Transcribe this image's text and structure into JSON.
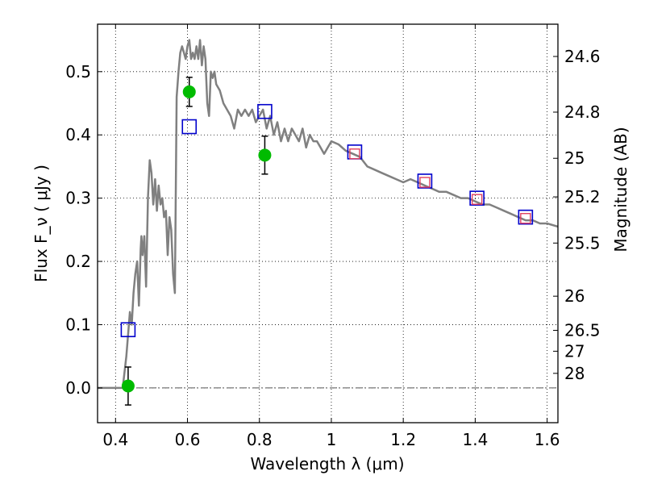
{
  "chart_data": {
    "type": "scatter",
    "xlabel": "Wavelength  λ (μm)",
    "ylabel": "Flux  F_ν  ( μJy )",
    "ylabel_right": "Magnitude (AB)",
    "xlim": [
      0.35,
      1.63
    ],
    "ylim": [
      -0.055,
      0.575
    ],
    "grid": true,
    "x_ticks": [
      {
        "value": 0.4,
        "label": "0.4"
      },
      {
        "value": 0.6,
        "label": "0.6"
      },
      {
        "value": 0.8,
        "label": "0.8"
      },
      {
        "value": 1.0,
        "label": "1"
      },
      {
        "value": 1.2,
        "label": "1.2"
      },
      {
        "value": 1.4,
        "label": "1.4"
      },
      {
        "value": 1.6,
        "label": "1.6"
      }
    ],
    "y_ticks": [
      {
        "value": 0.0,
        "label": "0.0"
      },
      {
        "value": 0.1,
        "label": "0.1"
      },
      {
        "value": 0.2,
        "label": "0.2"
      },
      {
        "value": 0.3,
        "label": "0.3"
      },
      {
        "value": 0.4,
        "label": "0.4"
      },
      {
        "value": 0.5,
        "label": "0.5"
      }
    ],
    "magnitude_ticks": [
      {
        "mag": 24.6,
        "flux": 0.524,
        "label": "24.6"
      },
      {
        "mag": 24.8,
        "flux": 0.436,
        "label": "24.8"
      },
      {
        "mag": 25.0,
        "flux": 0.363,
        "label": "25"
      },
      {
        "mag": 25.2,
        "flux": 0.302,
        "label": "25.2"
      },
      {
        "mag": 25.5,
        "flux": 0.229,
        "label": "25.5"
      },
      {
        "mag": 26.0,
        "flux": 0.145,
        "label": "26"
      },
      {
        "mag": 26.5,
        "flux": 0.091,
        "label": "26.5"
      },
      {
        "mag": 27.0,
        "flux": 0.058,
        "label": "27"
      },
      {
        "mag": 28.0,
        "flux": 0.023,
        "label": "28"
      }
    ],
    "series": [
      {
        "kind": "line",
        "color": "#808080",
        "x": [
          0.35,
          0.42,
          0.43,
          0.44,
          0.445,
          0.45,
          0.455,
          0.46,
          0.465,
          0.47,
          0.472,
          0.475,
          0.48,
          0.485,
          0.49,
          0.495,
          0.5,
          0.505,
          0.51,
          0.515,
          0.52,
          0.525,
          0.53,
          0.535,
          0.54,
          0.545,
          0.55,
          0.555,
          0.56,
          0.565,
          0.57,
          0.575,
          0.58,
          0.585,
          0.59,
          0.595,
          0.6,
          0.605,
          0.61,
          0.615,
          0.62,
          0.625,
          0.63,
          0.635,
          0.64,
          0.645,
          0.65,
          0.655,
          0.66,
          0.665,
          0.67,
          0.675,
          0.68,
          0.69,
          0.7,
          0.71,
          0.72,
          0.73,
          0.74,
          0.75,
          0.76,
          0.77,
          0.78,
          0.79,
          0.8,
          0.81,
          0.82,
          0.83,
          0.84,
          0.85,
          0.86,
          0.87,
          0.88,
          0.89,
          0.9,
          0.91,
          0.92,
          0.93,
          0.94,
          0.95,
          0.96,
          0.97,
          0.98,
          0.99,
          1.0,
          1.02,
          1.04,
          1.06,
          1.08,
          1.1,
          1.12,
          1.14,
          1.16,
          1.18,
          1.2,
          1.22,
          1.24,
          1.26,
          1.28,
          1.3,
          1.32,
          1.34,
          1.36,
          1.38,
          1.4,
          1.42,
          1.44,
          1.46,
          1.48,
          1.5,
          1.52,
          1.54,
          1.56,
          1.58,
          1.6,
          1.63
        ],
        "y": [
          0.0,
          0.0,
          0.05,
          0.12,
          0.1,
          0.15,
          0.18,
          0.2,
          0.13,
          0.22,
          0.24,
          0.21,
          0.24,
          0.16,
          0.3,
          0.36,
          0.34,
          0.29,
          0.33,
          0.28,
          0.32,
          0.29,
          0.3,
          0.27,
          0.28,
          0.21,
          0.27,
          0.25,
          0.18,
          0.15,
          0.46,
          0.5,
          0.53,
          0.54,
          0.53,
          0.52,
          0.54,
          0.55,
          0.52,
          0.53,
          0.52,
          0.54,
          0.52,
          0.55,
          0.51,
          0.54,
          0.52,
          0.45,
          0.43,
          0.5,
          0.49,
          0.5,
          0.48,
          0.47,
          0.45,
          0.44,
          0.43,
          0.41,
          0.44,
          0.43,
          0.44,
          0.43,
          0.44,
          0.42,
          0.43,
          0.44,
          0.41,
          0.43,
          0.4,
          0.42,
          0.39,
          0.41,
          0.39,
          0.41,
          0.4,
          0.39,
          0.41,
          0.38,
          0.4,
          0.39,
          0.39,
          0.38,
          0.37,
          0.38,
          0.39,
          0.385,
          0.375,
          0.37,
          0.365,
          0.35,
          0.345,
          0.34,
          0.335,
          0.33,
          0.325,
          0.33,
          0.325,
          0.32,
          0.315,
          0.31,
          0.31,
          0.305,
          0.3,
          0.3,
          0.295,
          0.29,
          0.29,
          0.285,
          0.28,
          0.275,
          0.27,
          0.265,
          0.265,
          0.26,
          0.26,
          0.255
        ]
      },
      {
        "kind": "points",
        "marker": "circle",
        "color": "#00bb00",
        "x": [
          0.435,
          0.605,
          0.815
        ],
        "y": [
          0.003,
          0.468,
          0.368
        ],
        "yerr": [
          0.03,
          0.023,
          0.03
        ]
      },
      {
        "kind": "points",
        "marker": "square-open",
        "color": "#0000cc",
        "x": [
          0.435,
          0.605,
          0.815,
          1.065,
          1.26,
          1.405,
          1.54
        ],
        "y": [
          0.092,
          0.413,
          0.437,
          0.373,
          0.327,
          0.3,
          0.27
        ]
      },
      {
        "kind": "points",
        "marker": "square-open-small",
        "color": "#e04060",
        "x": [
          1.065,
          1.26,
          1.405,
          1.54
        ],
        "y": [
          0.37,
          0.325,
          0.298,
          0.268
        ]
      }
    ]
  }
}
